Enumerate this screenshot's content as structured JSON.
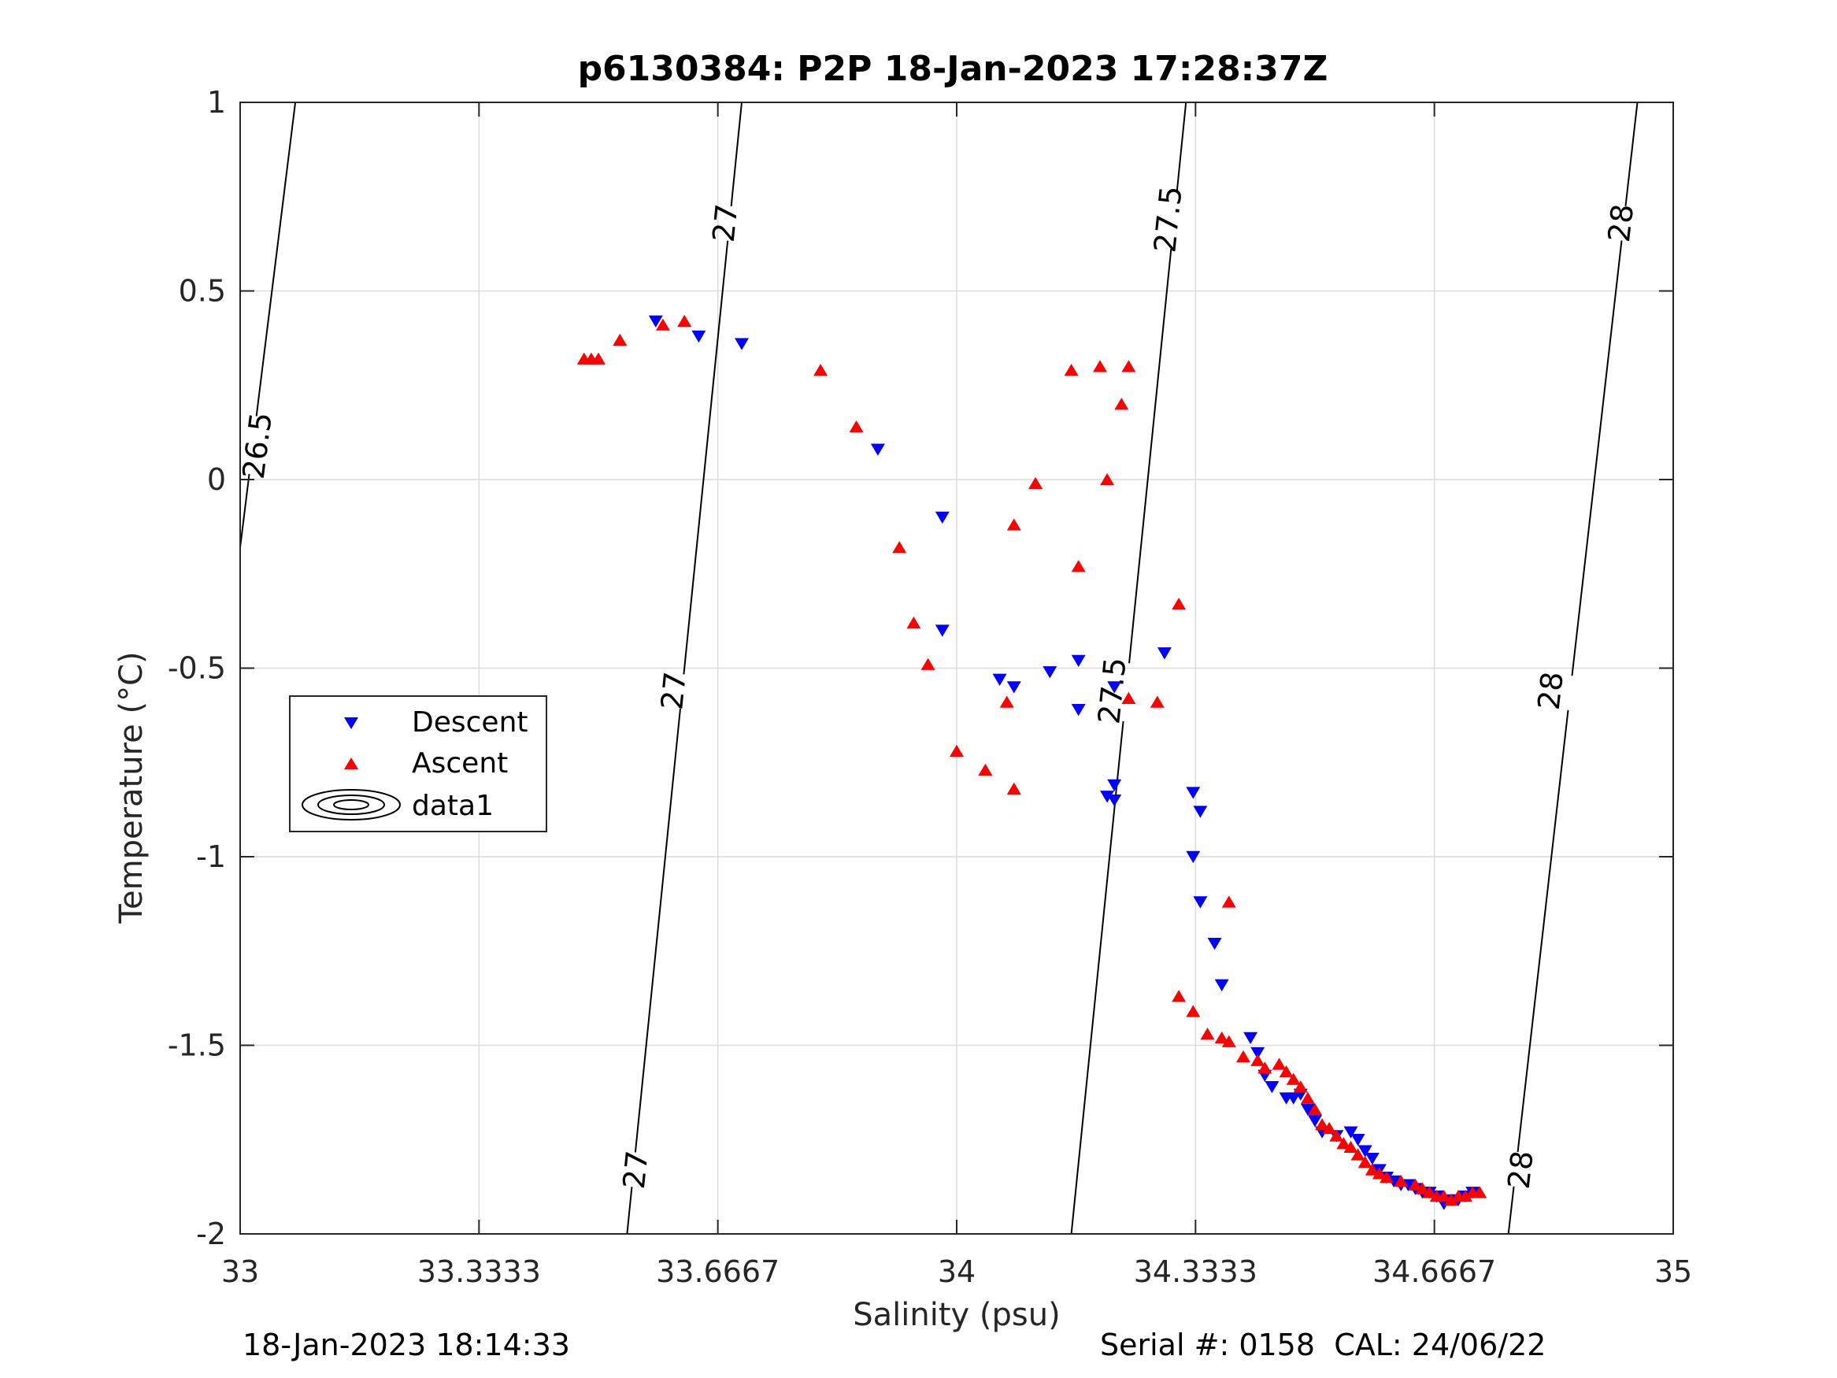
{
  "chart_data": {
    "type": "scatter",
    "title": "p6130384: P2P 18-Jan-2023 17:28:37Z",
    "xlabel": "Salinity (psu)",
    "ylabel": "Temperature (°C)",
    "xlim": [
      33,
      35
    ],
    "ylim": [
      -2,
      1
    ],
    "x_tick_labels": [
      "33",
      "33.3333",
      "33.6667",
      "34",
      "34.3333",
      "34.6667",
      "35"
    ],
    "y_tick_labels": [
      "1",
      "0.5",
      "0",
      "-0.5",
      "-1",
      "-1.5",
      "-2"
    ],
    "grid": true,
    "legend_position": "left",
    "legend": [
      "Descent",
      "Ascent",
      "data1"
    ],
    "colors": {
      "descent": "#0000ff",
      "ascent": "#ff0000",
      "contour": "#000000",
      "grid": "#dcdcdc"
    },
    "series": [
      {
        "name": "Descent",
        "marker": "triangle-down",
        "points": [
          [
            33.58,
            0.42
          ],
          [
            33.64,
            0.38
          ],
          [
            33.7,
            0.36
          ],
          [
            33.89,
            0.08
          ],
          [
            33.98,
            -0.1
          ],
          [
            33.98,
            -0.4
          ],
          [
            34.06,
            -0.53
          ],
          [
            34.08,
            -0.55
          ],
          [
            34.13,
            -0.51
          ],
          [
            34.17,
            -0.48
          ],
          [
            34.17,
            -0.61
          ],
          [
            34.22,
            -0.55
          ],
          [
            34.21,
            -0.84
          ],
          [
            34.22,
            -0.85
          ],
          [
            34.22,
            -0.81
          ],
          [
            34.29,
            -0.46
          ],
          [
            34.33,
            -0.83
          ],
          [
            34.34,
            -0.88
          ],
          [
            34.33,
            -1.0
          ],
          [
            34.34,
            -1.12
          ],
          [
            34.36,
            -1.23
          ],
          [
            34.37,
            -1.34
          ],
          [
            34.41,
            -1.48
          ],
          [
            34.42,
            -1.52
          ],
          [
            34.43,
            -1.58
          ],
          [
            34.44,
            -1.61
          ],
          [
            34.46,
            -1.64
          ],
          [
            34.47,
            -1.64
          ],
          [
            34.48,
            -1.63
          ],
          [
            34.49,
            -1.67
          ],
          [
            34.5,
            -1.7
          ],
          [
            34.51,
            -1.73
          ],
          [
            34.53,
            -1.74
          ],
          [
            34.55,
            -1.73
          ],
          [
            34.56,
            -1.75
          ],
          [
            34.57,
            -1.78
          ],
          [
            34.58,
            -1.8
          ],
          [
            34.59,
            -1.83
          ],
          [
            34.6,
            -1.85
          ],
          [
            34.61,
            -1.86
          ],
          [
            34.62,
            -1.87
          ],
          [
            34.63,
            -1.87
          ],
          [
            34.64,
            -1.88
          ],
          [
            34.65,
            -1.89
          ],
          [
            34.66,
            -1.89
          ],
          [
            34.67,
            -1.9
          ],
          [
            34.68,
            -1.92
          ],
          [
            34.69,
            -1.91
          ],
          [
            34.7,
            -1.91
          ],
          [
            34.71,
            -1.9
          ],
          [
            34.72,
            -1.89
          ]
        ]
      },
      {
        "name": "Ascent",
        "marker": "triangle-up",
        "points": [
          [
            33.48,
            0.32
          ],
          [
            33.49,
            0.32
          ],
          [
            33.5,
            0.32
          ],
          [
            33.53,
            0.37
          ],
          [
            33.59,
            0.41
          ],
          [
            33.62,
            0.42
          ],
          [
            33.81,
            0.29
          ],
          [
            33.86,
            0.14
          ],
          [
            33.92,
            -0.18
          ],
          [
            33.94,
            -0.38
          ],
          [
            33.96,
            -0.49
          ],
          [
            34.0,
            -0.72
          ],
          [
            34.04,
            -0.77
          ],
          [
            34.07,
            -0.59
          ],
          [
            34.08,
            -0.82
          ],
          [
            34.08,
            -0.12
          ],
          [
            34.11,
            -0.01
          ],
          [
            34.16,
            0.29
          ],
          [
            34.17,
            -0.23
          ],
          [
            34.2,
            0.3
          ],
          [
            34.21,
            0.0
          ],
          [
            34.23,
            0.2
          ],
          [
            34.24,
            0.3
          ],
          [
            34.24,
            -0.58
          ],
          [
            34.28,
            -0.59
          ],
          [
            34.31,
            -0.33
          ],
          [
            34.31,
            -1.37
          ],
          [
            34.33,
            -1.41
          ],
          [
            34.35,
            -1.47
          ],
          [
            34.37,
            -1.48
          ],
          [
            34.38,
            -1.12
          ],
          [
            34.38,
            -1.49
          ],
          [
            34.4,
            -1.53
          ],
          [
            34.42,
            -1.54
          ],
          [
            34.43,
            -1.56
          ],
          [
            34.45,
            -1.55
          ],
          [
            34.46,
            -1.57
          ],
          [
            34.47,
            -1.59
          ],
          [
            34.48,
            -1.61
          ],
          [
            34.49,
            -1.64
          ],
          [
            34.5,
            -1.67
          ],
          [
            34.51,
            -1.71
          ],
          [
            34.52,
            -1.72
          ],
          [
            34.53,
            -1.74
          ],
          [
            34.54,
            -1.76
          ],
          [
            34.55,
            -1.77
          ],
          [
            34.56,
            -1.79
          ],
          [
            34.57,
            -1.81
          ],
          [
            34.58,
            -1.83
          ],
          [
            34.59,
            -1.84
          ],
          [
            34.6,
            -1.85
          ],
          [
            34.62,
            -1.86
          ],
          [
            34.64,
            -1.87
          ],
          [
            34.65,
            -1.88
          ],
          [
            34.66,
            -1.89
          ],
          [
            34.67,
            -1.9
          ],
          [
            34.68,
            -1.9
          ],
          [
            34.69,
            -1.91
          ],
          [
            34.7,
            -1.9
          ],
          [
            34.71,
            -1.9
          ],
          [
            34.72,
            -1.89
          ],
          [
            34.73,
            -1.89
          ]
        ]
      }
    ],
    "density_contours": [
      {
        "level": "26.5",
        "points": [
          [
            33.0,
            -0.18
          ],
          [
            33.077,
            1.0
          ]
        ],
        "labels": [
          [
            33.024,
            0.09
          ]
        ]
      },
      {
        "level": "27",
        "points": [
          [
            33.54,
            -2.0
          ],
          [
            33.7,
            1.0
          ]
        ],
        "labels": [
          [
            33.552,
            -1.83
          ],
          [
            33.605,
            -0.56
          ],
          [
            33.677,
            0.68
          ]
        ]
      },
      {
        "level": "27.5",
        "points": [
          [
            34.16,
            -2.0
          ],
          [
            34.32,
            1.0
          ]
        ],
        "labels": [
          [
            34.217,
            -0.56
          ],
          [
            34.295,
            0.69
          ]
        ]
      },
      {
        "level": "28",
        "points": [
          [
            34.77,
            -2.0
          ],
          [
            34.95,
            1.0
          ]
        ],
        "labels": [
          [
            34.787,
            -1.83
          ],
          [
            34.829,
            -0.56
          ],
          [
            34.927,
            0.68
          ]
        ]
      }
    ]
  },
  "footer": {
    "left": "18-Jan-2023 18:14:33",
    "right": "Serial #: 0158  CAL: 24/06/22"
  }
}
